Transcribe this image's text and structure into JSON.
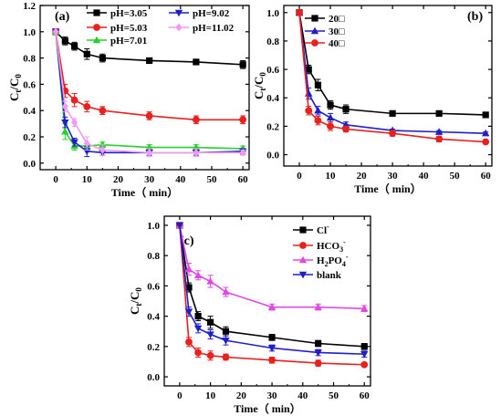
{
  "chart_data": [
    {
      "panel_label": "(a)",
      "type": "line",
      "xlabel": "Time（ min）",
      "ylabel_main": "C",
      "ylabel_sub1": "t",
      "ylabel_mid": "/C",
      "ylabel_sub2": "0",
      "xlim": [
        -5,
        62
      ],
      "ylim": [
        -0.05,
        1.2
      ],
      "xticks": [
        0,
        10,
        20,
        30,
        40,
        50,
        60
      ],
      "yticks": [
        0.0,
        0.2,
        0.4,
        0.6,
        0.8,
        1.0,
        1.2
      ],
      "ytick_labels": [
        "0.0",
        "0.2",
        "0.4",
        "0.6",
        "0.8",
        "1.0",
        "1.2"
      ],
      "x": [
        0,
        3,
        6,
        10,
        15,
        30,
        45,
        60
      ],
      "legend_position": "top",
      "series": [
        {
          "name": "pH=3.05",
          "color": "#000000",
          "marker": "square",
          "values": [
            1.0,
            0.93,
            0.89,
            0.83,
            0.8,
            0.78,
            0.77,
            0.75
          ],
          "errors": [
            0,
            0.03,
            0.03,
            0.04,
            0.03,
            0.02,
            0.02,
            0.03
          ]
        },
        {
          "name": "pH=5.03",
          "color": "#e8201e",
          "marker": "circle",
          "values": [
            1.0,
            0.55,
            0.48,
            0.43,
            0.4,
            0.36,
            0.33,
            0.33
          ],
          "errors": [
            0,
            0.05,
            0.05,
            0.04,
            0.03,
            0.03,
            0.03,
            0.03
          ]
        },
        {
          "name": "pH=7.01",
          "color": "#25d12a",
          "marker": "triangle-up",
          "values": [
            1.0,
            0.24,
            0.13,
            0.13,
            0.14,
            0.12,
            0.12,
            0.11
          ],
          "errors": [
            0,
            0.06,
            0.03,
            0.02,
            0.02,
            0.02,
            0.02,
            0.02
          ]
        },
        {
          "name": "pH=9.02",
          "color": "#1f1fc8",
          "marker": "triangle-down",
          "values": [
            1.0,
            0.31,
            0.16,
            0.09,
            0.08,
            0.08,
            0.08,
            0.09
          ],
          "errors": [
            0,
            0.04,
            0.03,
            0.04,
            0.02,
            0.02,
            0.02,
            0.02
          ]
        },
        {
          "name": "pH=11.02",
          "color": "#f29af2",
          "marker": "diamond",
          "values": [
            1.0,
            0.43,
            0.31,
            0.15,
            0.1,
            0.08,
            0.08,
            0.08
          ],
          "errors": [
            0,
            0.04,
            0.03,
            0.05,
            0.04,
            0.03,
            0.03,
            0.02
          ]
        }
      ]
    },
    {
      "panel_label": "(b)",
      "type": "line",
      "xlabel": "Time（ min）",
      "ylabel_main": "C",
      "ylabel_sub1": "t",
      "ylabel_mid": "/C",
      "ylabel_sub2": "0",
      "xlim": [
        -5,
        62
      ],
      "ylim": [
        -0.08,
        1.05
      ],
      "xticks": [
        0,
        10,
        20,
        30,
        40,
        50,
        60
      ],
      "yticks": [
        0.0,
        0.2,
        0.4,
        0.6,
        0.8,
        1.0
      ],
      "ytick_labels": [
        "0.0",
        "0.2",
        "0.4",
        "0.6",
        "0.8",
        "1.0"
      ],
      "x": [
        0,
        3,
        6,
        10,
        15,
        30,
        45,
        60
      ],
      "legend_position": "top-left",
      "series": [
        {
          "name": "20□",
          "color": "#000000",
          "marker": "square",
          "values": [
            1.0,
            0.6,
            0.49,
            0.35,
            0.32,
            0.29,
            0.29,
            0.28
          ],
          "errors": [
            0,
            0.03,
            0.04,
            0.03,
            0.03,
            0.01,
            0.01,
            0.01
          ]
        },
        {
          "name": "30□",
          "color": "#1f1fc8",
          "marker": "triangle-up",
          "values": [
            1.0,
            0.43,
            0.31,
            0.26,
            0.21,
            0.17,
            0.16,
            0.15
          ],
          "errors": [
            0,
            0.04,
            0.03,
            0.03,
            0.02,
            0.01,
            0.01,
            0.01
          ]
        },
        {
          "name": "40□",
          "color": "#e8201e",
          "marker": "circle",
          "values": [
            1.0,
            0.31,
            0.24,
            0.2,
            0.18,
            0.15,
            0.11,
            0.09
          ],
          "errors": [
            0,
            0.03,
            0.03,
            0.03,
            0.02,
            0.02,
            0.02,
            0.01
          ]
        }
      ]
    },
    {
      "panel_label": "(c)",
      "type": "line",
      "xlabel": "Time（ min）",
      "ylabel_main": "C",
      "ylabel_sub1": "t",
      "ylabel_mid": "/C",
      "ylabel_sub2": "0",
      "xlim": [
        -5,
        62
      ],
      "ylim": [
        -0.06,
        1.06
      ],
      "xticks": [
        0,
        10,
        20,
        30,
        40,
        50,
        60
      ],
      "yticks": [
        0.0,
        0.2,
        0.4,
        0.6,
        0.8,
        1.0
      ],
      "ytick_labels": [
        "0.0",
        "0.2",
        "0.4",
        "0.6",
        "0.8",
        "1.0"
      ],
      "x": [
        0,
        3,
        6,
        10,
        15,
        30,
        45,
        60
      ],
      "legend_position": "top-right",
      "series": [
        {
          "name": "Cl",
          "name_sup": "-",
          "color": "#000000",
          "marker": "square",
          "values": [
            1.0,
            0.59,
            0.4,
            0.36,
            0.3,
            0.26,
            0.22,
            0.2
          ],
          "errors": [
            0,
            0.03,
            0.03,
            0.04,
            0.03,
            0.02,
            0.02,
            0.02
          ]
        },
        {
          "name": "HCO",
          "name_sub": "3",
          "name_sup": "-",
          "color": "#e8201e",
          "marker": "circle",
          "values": [
            1.0,
            0.23,
            0.16,
            0.14,
            0.13,
            0.11,
            0.09,
            0.08
          ],
          "errors": [
            0,
            0.03,
            0.03,
            0.03,
            0.02,
            0.02,
            0.02,
            0.01
          ]
        },
        {
          "name": "H",
          "name_sub": "2",
          "name_mid": "PO",
          "name_sub2": "4",
          "name_sup": "-",
          "color": "#dd4be3",
          "marker": "triangle-up",
          "values": [
            1.0,
            0.71,
            0.67,
            0.63,
            0.56,
            0.46,
            0.46,
            0.45
          ],
          "errors": [
            0,
            0.04,
            0.03,
            0.04,
            0.03,
            0.02,
            0.02,
            0.02
          ]
        },
        {
          "name": "blank",
          "color": "#1f1fc8",
          "marker": "triangle-down",
          "values": [
            1.0,
            0.43,
            0.32,
            0.28,
            0.24,
            0.19,
            0.16,
            0.15
          ],
          "errors": [
            0,
            0.03,
            0.03,
            0.03,
            0.03,
            0.02,
            0.02,
            0.02
          ]
        }
      ]
    }
  ]
}
